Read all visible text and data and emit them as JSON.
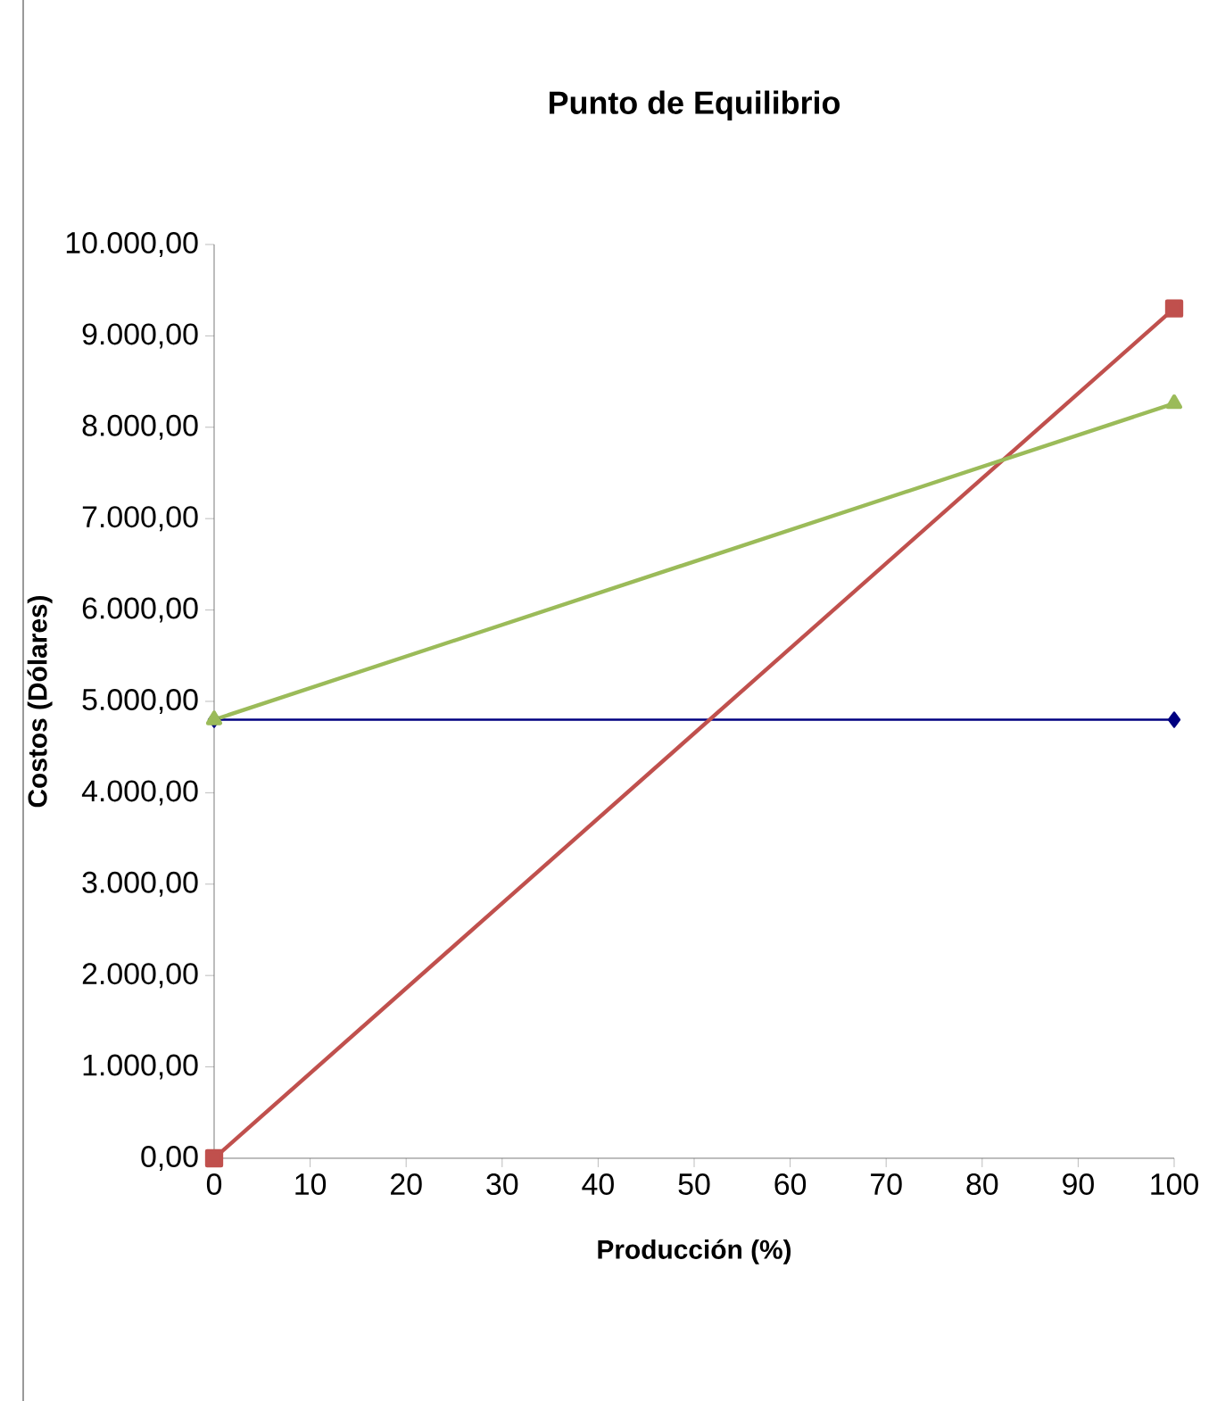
{
  "chart_data": {
    "type": "line",
    "title": "Punto de Equilibrio",
    "xlabel": "Producción (%)",
    "ylabel": "Costos (Dólares)",
    "x": [
      0,
      100
    ],
    "series": [
      {
        "color": "#000080",
        "values": [
          4800,
          4800
        ],
        "marker": "diamond"
      },
      {
        "color": "#c0504d",
        "values": [
          0,
          9300
        ],
        "marker": "square"
      },
      {
        "color": "#9bbb59",
        "values": [
          4800,
          8260
        ],
        "marker": "triangle"
      }
    ],
    "xlim": [
      0,
      100
    ],
    "xticks": [
      0,
      10,
      20,
      30,
      40,
      50,
      60,
      70,
      80,
      90,
      100
    ],
    "ylim": [
      0,
      10000
    ],
    "yticks": [
      {
        "value": 0,
        "label": "0,00"
      },
      {
        "value": 1000,
        "label": "1.000,00"
      },
      {
        "value": 2000,
        "label": "2.000,00"
      },
      {
        "value": 3000,
        "label": "3.000,00"
      },
      {
        "value": 4000,
        "label": "4.000,00"
      },
      {
        "value": 5000,
        "label": "5.000,00"
      },
      {
        "value": 6000,
        "label": "6.000,00"
      },
      {
        "value": 7000,
        "label": "7.000,00"
      },
      {
        "value": 8000,
        "label": "8.000,00"
      },
      {
        "value": 9000,
        "label": "9.000,00"
      },
      {
        "value": 10000,
        "label": "10.000,00"
      }
    ],
    "tick_labels": "xy"
  }
}
